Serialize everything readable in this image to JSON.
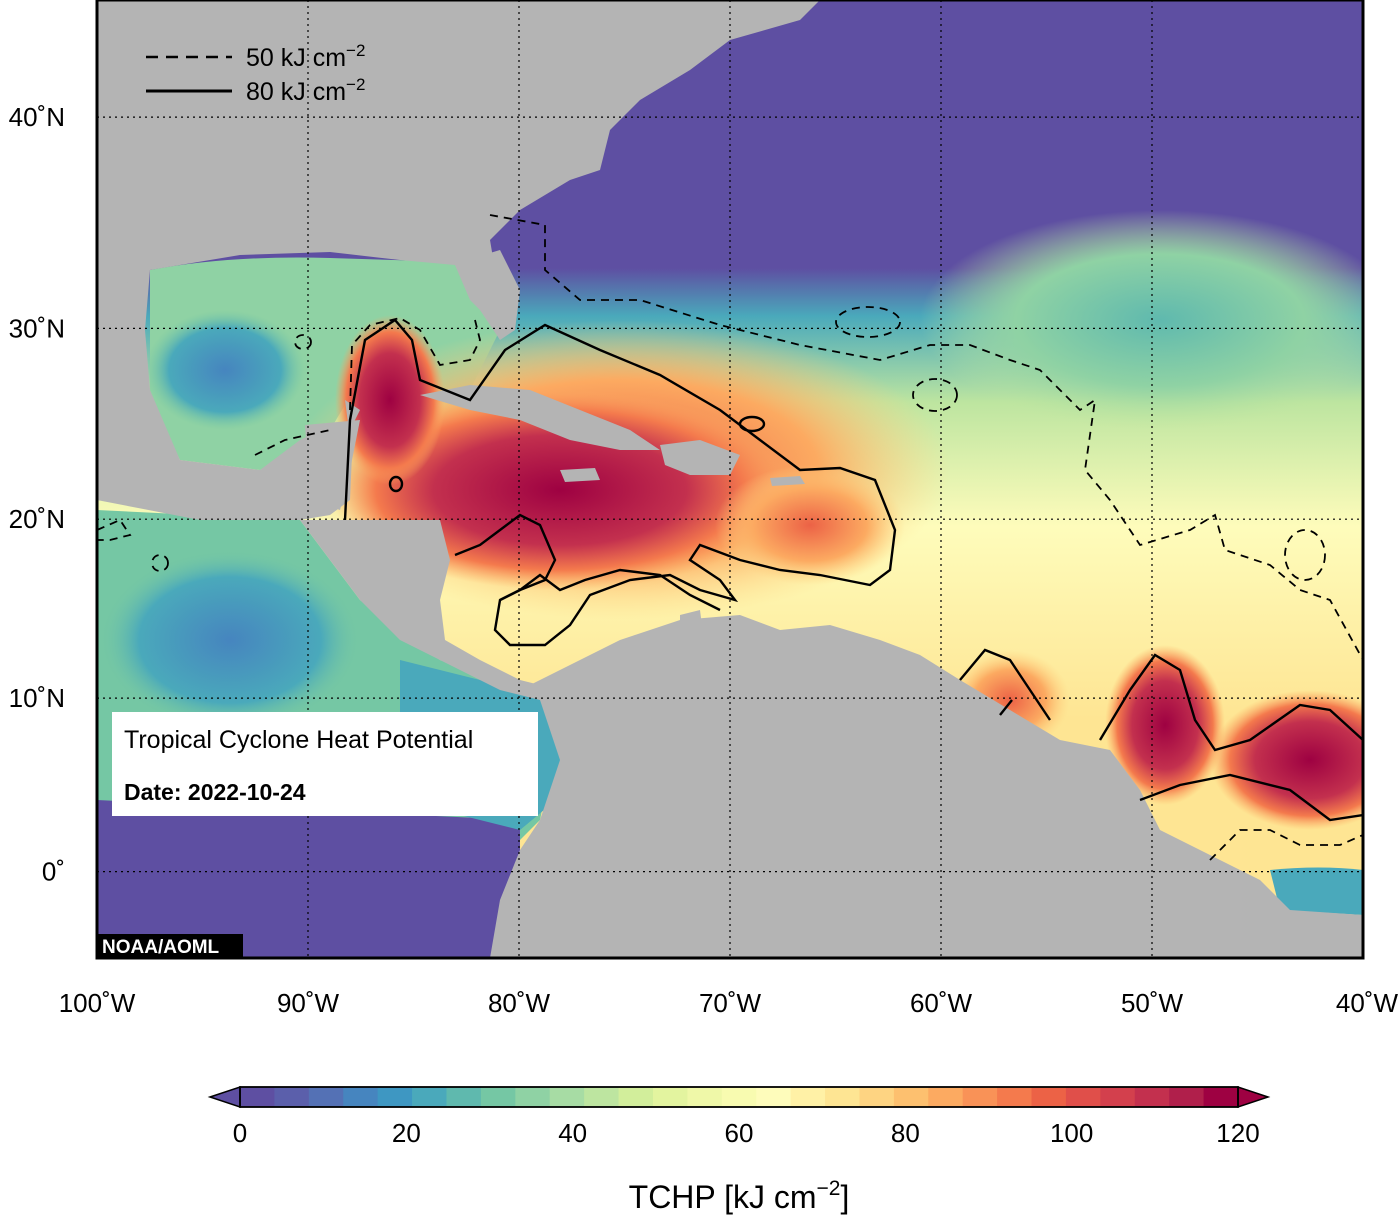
{
  "map": {
    "credit": "NOAA/AOML",
    "info_box": {
      "title": "Tropical Cyclone Heat Potential",
      "date_label": "Date: 2022-10-24"
    },
    "legend": {
      "dashed": {
        "value": "50",
        "unit": "kJ cm",
        "exp": "−2"
      },
      "solid": {
        "value": "80",
        "unit": "kJ cm",
        "exp": "−2"
      }
    },
    "lat_labels": [
      {
        "value": 40,
        "text": "40˚N"
      },
      {
        "value": 30,
        "text": "30˚N"
      },
      {
        "value": 20,
        "text": "20˚N"
      },
      {
        "value": 10,
        "text": "10˚N"
      },
      {
        "value": 0,
        "text": "0˚"
      }
    ],
    "lon_labels": [
      {
        "value": -100,
        "text": "100˚W"
      },
      {
        "value": -90,
        "text": "90˚W"
      },
      {
        "value": -80,
        "text": "80˚W"
      },
      {
        "value": -70,
        "text": "70˚W"
      },
      {
        "value": -60,
        "text": "60˚W"
      },
      {
        "value": -50,
        "text": "50˚W"
      },
      {
        "value": -40,
        "text": "40˚W"
      }
    ],
    "extent": {
      "lon": [
        -100,
        -40
      ],
      "lat": [
        -5,
        45
      ]
    }
  },
  "colorbar": {
    "ticks": [
      "0",
      "20",
      "40",
      "60",
      "80",
      "100",
      "120"
    ],
    "range": [
      0,
      120
    ],
    "title_main": "TCHP [kJ cm",
    "title_exp": "−2",
    "title_end": "]",
    "colors": [
      "#5e4fa2",
      "#5b5fab",
      "#5471b5",
      "#4685bf",
      "#3e97c2",
      "#4aa9bb",
      "#5fb9ae",
      "#75c7a4",
      "#8fd2a4",
      "#a7dca4",
      "#bde5a0",
      "#d2ee9b",
      "#e3f49f",
      "#eff8a8",
      "#f8fbb0",
      "#fefcbb",
      "#fff1a6",
      "#fee593",
      "#fed482",
      "#fdc06f",
      "#fcaa61",
      "#f99257",
      "#f47a4d",
      "#ec6246",
      "#e04f4a",
      "#d3404d",
      "#c3304e",
      "#b01f4b",
      "#9e0142"
    ]
  },
  "colors": {
    "land": "#b4b4b4",
    "frame": "#000000",
    "high": "#9e0142",
    "low": "#5e4fa2"
  }
}
